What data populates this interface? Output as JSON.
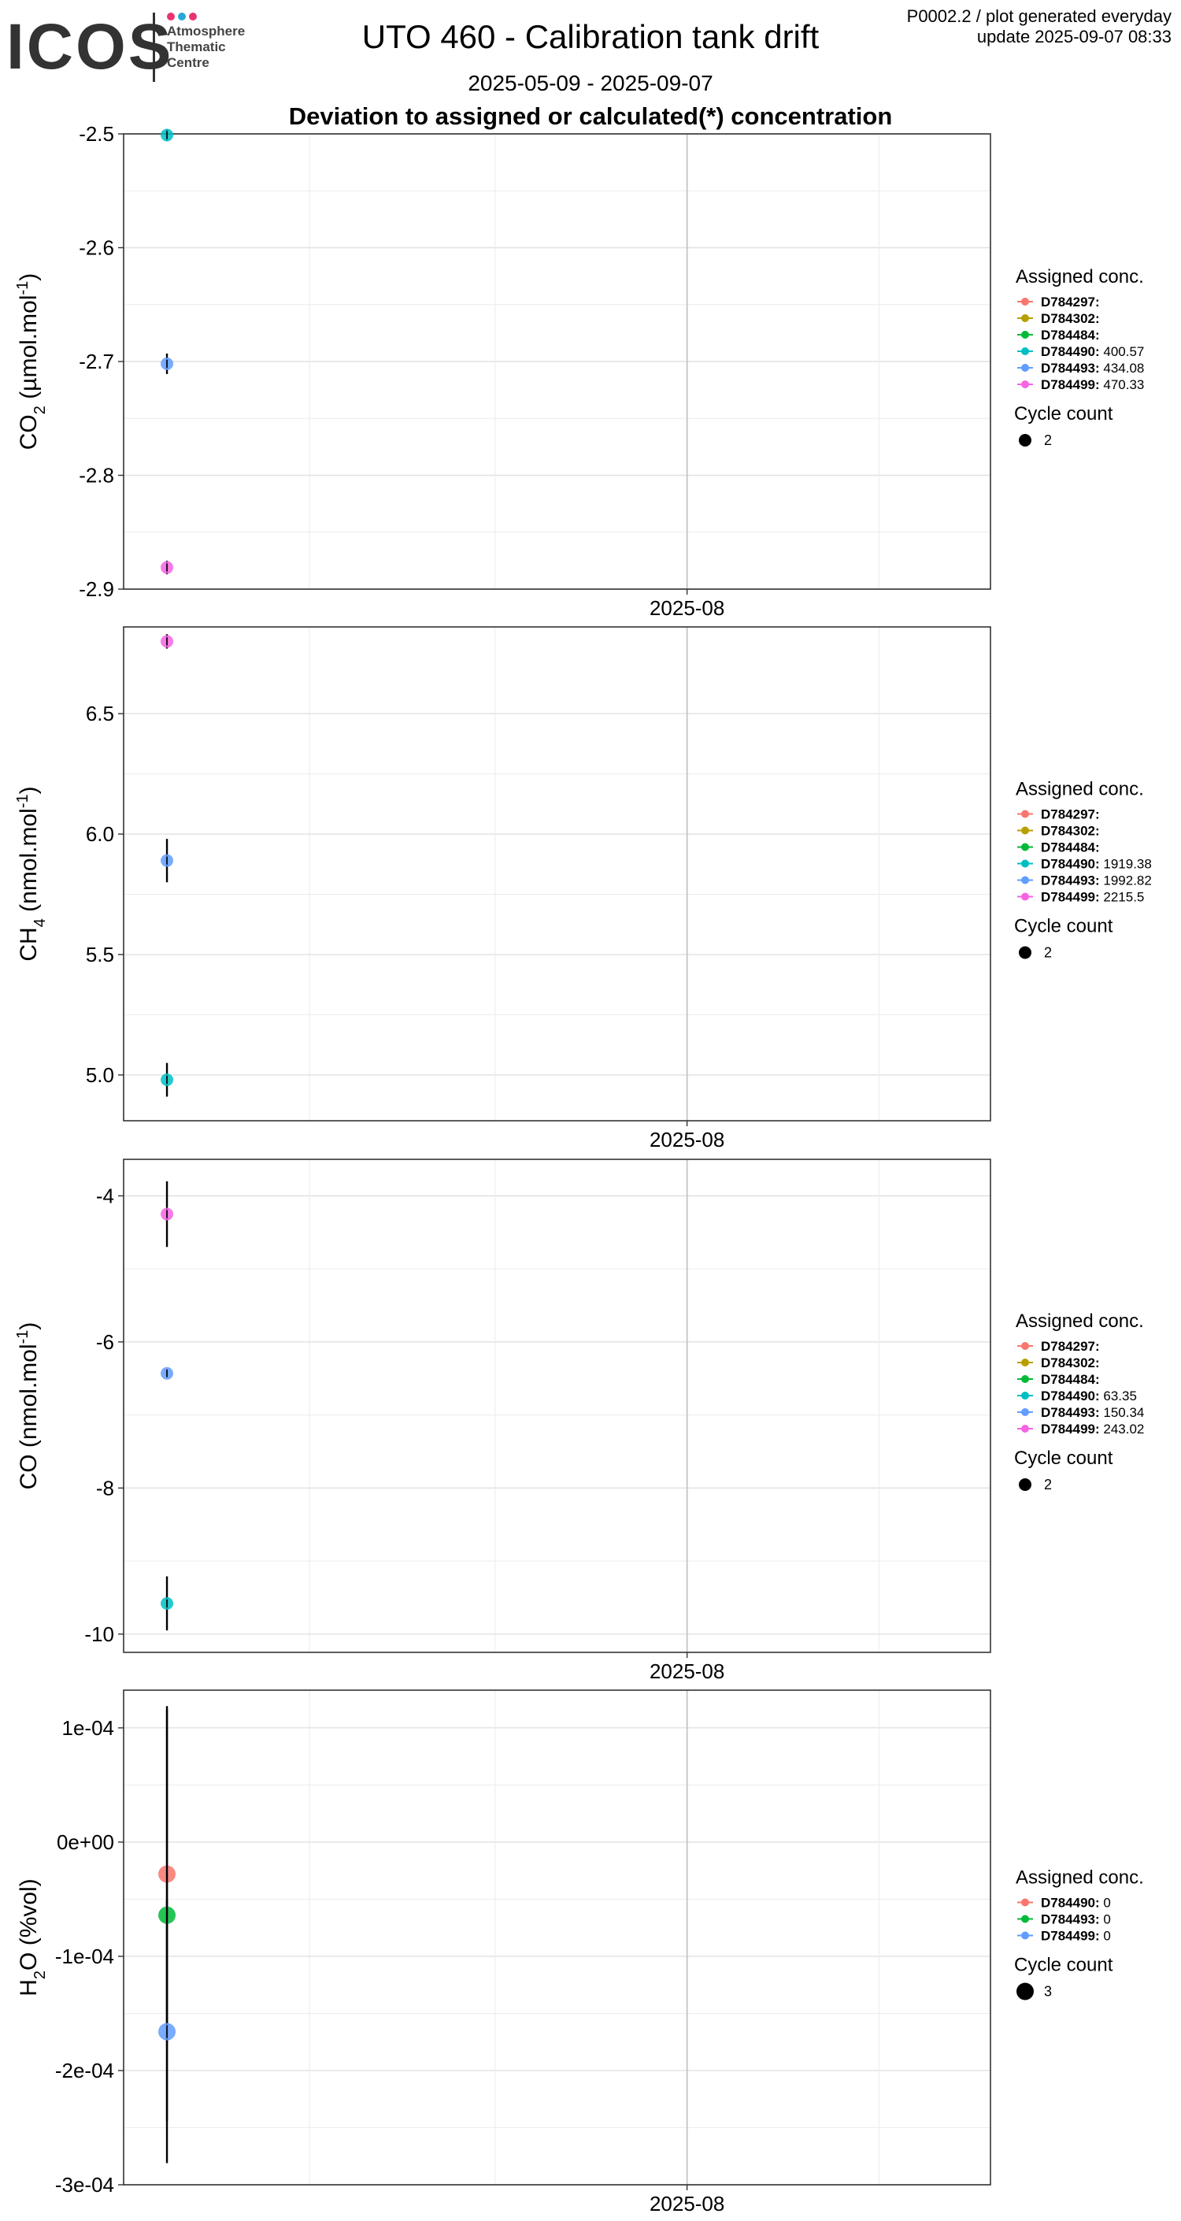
{
  "header": {
    "logo_text": "ICOS",
    "logo_subtitle": [
      "Atmosphere",
      "Thematic",
      "Centre"
    ],
    "title": "UTO 460 - Calibration tank drift",
    "date_range": "2025-05-09 - 2025-09-07",
    "subtitle": "Deviation to assigned or calculated(*) concentration",
    "plot_id": "P0002.2 / plot generated everyday",
    "update": "update  2025-09-07 08:33"
  },
  "colors": {
    "logo_dots": [
      "#e8336e",
      "#2aa7d6",
      "#e8336e"
    ],
    "D784297": "#F8766D",
    "D784302": "#B79F00",
    "D784484": "#00BA38",
    "D784490": "#00BFC4",
    "D784493": "#619CFF",
    "D784499": "#F564E3"
  },
  "chart_data": [
    {
      "type": "scatter",
      "ylabel": "CO2 (µmol.mol-1)",
      "ylabel_base": "CO",
      "ylabel_sub": "2",
      "ylabel_mid": " (µmol.mol",
      "ylabel_sup": "-1",
      "ylabel_end": ")",
      "x_ticks": [
        "2025-08"
      ],
      "y_range": [
        -2.9,
        -2.5
      ],
      "y_ticks": [
        -2.9,
        -2.8,
        -2.7,
        -2.6,
        -2.5
      ],
      "y_tick_labels": [
        "-2.9",
        "-2.8",
        "-2.7",
        "-2.6",
        "-2.5"
      ],
      "grid": true,
      "legend": {
        "title": "Assigned conc.",
        "entries": [
          {
            "id": "D784297",
            "value": ""
          },
          {
            "id": "D784302",
            "value": ""
          },
          {
            "id": "D784484",
            "value": ""
          },
          {
            "id": "D784490",
            "value": "400.57"
          },
          {
            "id": "D784493",
            "value": "434.08"
          },
          {
            "id": "D784499",
            "value": "470.33"
          }
        ],
        "size_title": "Cycle count",
        "size_value": "2"
      },
      "points": [
        {
          "series": "D784490",
          "x": "2025-05-09",
          "y": -2.501,
          "err": 0.005
        },
        {
          "series": "D784493",
          "x": "2025-05-09",
          "y": -2.702,
          "err": 0.009
        },
        {
          "series": "D784499",
          "x": "2025-05-09",
          "y": -2.881,
          "err": 0.006
        }
      ]
    },
    {
      "type": "scatter",
      "ylabel": "CH4 (nmol.mol-1)",
      "ylabel_base": "CH",
      "ylabel_sub": "4",
      "ylabel_mid": " (nmol.mol",
      "ylabel_sup": "-1",
      "ylabel_end": ")",
      "x_ticks": [
        "2025-08"
      ],
      "y_range": [
        4.81,
        6.86
      ],
      "y_ticks": [
        5.0,
        5.5,
        6.0,
        6.5
      ],
      "y_tick_labels": [
        "5.0",
        "5.5",
        "6.0",
        "6.5"
      ],
      "grid": true,
      "legend": {
        "title": "Assigned conc.",
        "entries": [
          {
            "id": "D784297",
            "value": ""
          },
          {
            "id": "D784302",
            "value": ""
          },
          {
            "id": "D784484",
            "value": ""
          },
          {
            "id": "D784490",
            "value": "1919.38"
          },
          {
            "id": "D784493",
            "value": "1992.82"
          },
          {
            "id": "D784499",
            "value": "2215.5"
          }
        ],
        "size_title": "Cycle count",
        "size_value": "2"
      },
      "points": [
        {
          "series": "D784499",
          "x": "2025-05-09",
          "y": 6.8,
          "err": 0.03
        },
        {
          "series": "D784493",
          "x": "2025-05-09",
          "y": 5.89,
          "err": 0.09
        },
        {
          "series": "D784490",
          "x": "2025-05-09",
          "y": 4.98,
          "err": 0.07
        }
      ]
    },
    {
      "type": "scatter",
      "ylabel": "CO (nmol.mol-1)",
      "ylabel_base": "CO",
      "ylabel_sub": "",
      "ylabel_mid": " (nmol.mol",
      "ylabel_sup": "-1",
      "ylabel_end": ")",
      "x_ticks": [
        "2025-08"
      ],
      "y_range": [
        -10.25,
        -3.5
      ],
      "y_ticks": [
        -10,
        -8,
        -6,
        -4
      ],
      "y_tick_labels": [
        "-10",
        "-8",
        "-6",
        "-4"
      ],
      "grid": true,
      "legend": {
        "title": "Assigned conc.",
        "entries": [
          {
            "id": "D784297",
            "value": ""
          },
          {
            "id": "D784302",
            "value": ""
          },
          {
            "id": "D784484",
            "value": ""
          },
          {
            "id": "D784490",
            "value": "63.35"
          },
          {
            "id": "D784493",
            "value": "150.34"
          },
          {
            "id": "D784499",
            "value": "243.02"
          }
        ],
        "size_title": "Cycle count",
        "size_value": "2"
      },
      "points": [
        {
          "series": "D784499",
          "x": "2025-05-09",
          "y": -4.25,
          "err": 0.45
        },
        {
          "series": "D784493",
          "x": "2025-05-09",
          "y": -6.43,
          "err": 0.03
        },
        {
          "series": "D784490",
          "x": "2025-05-09",
          "y": -9.58,
          "err": 0.37
        }
      ]
    },
    {
      "type": "scatter",
      "ylabel": "H2O (%vol)",
      "ylabel_base": "H",
      "ylabel_sub": "2",
      "ylabel_mid": "O (%vol)",
      "ylabel_sup": "",
      "ylabel_end": "",
      "x_ticks": [
        "2025-08"
      ],
      "y_range": [
        -0.0003,
        0.000133
      ],
      "y_ticks": [
        -0.0003,
        -0.0002,
        -0.0001,
        0.0,
        0.0001
      ],
      "y_tick_labels": [
        "-3e-04",
        "-2e-04",
        "-1e-04",
        "0e+00",
        "1e-04"
      ],
      "grid": true,
      "legend": {
        "title": "Assigned conc.",
        "entries": [
          {
            "id": "D784490",
            "value": "0"
          },
          {
            "id": "D784493",
            "value": "0"
          },
          {
            "id": "D784499",
            "value": "0"
          }
        ],
        "size_title": "Cycle count",
        "size_value": "3"
      },
      "points": [
        {
          "series": "D784490",
          "color": "#F8766D",
          "x": "2025-05-09",
          "y": -2.8e-05,
          "err": 0.000147
        },
        {
          "series": "D784493",
          "color": "#00BA38",
          "x": "2025-05-09",
          "y": -6.4e-05,
          "err": 0.00018
        },
        {
          "series": "D784499",
          "color": "#619CFF",
          "x": "2025-05-09",
          "y": -0.000166,
          "err": 0.000115
        }
      ]
    }
  ]
}
